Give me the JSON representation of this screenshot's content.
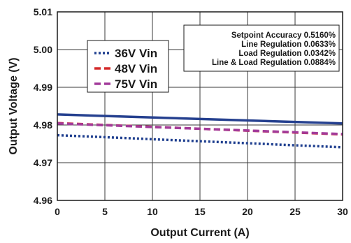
{
  "chart_data": {
    "type": "line",
    "title": "",
    "xlabel": "Output Current (A)",
    "ylabel": "Output Voltage (V)",
    "xlim": [
      0,
      30
    ],
    "ylim": [
      4.96,
      5.01
    ],
    "xticks": [
      0,
      5,
      10,
      15,
      20,
      25,
      30
    ],
    "yticks": [
      4.96,
      4.97,
      4.98,
      4.99,
      5.0,
      5.01
    ],
    "ytick_labels": [
      "4.96",
      "4.97",
      "4.98",
      "4.99",
      "5.00",
      "5.01"
    ],
    "grid": true,
    "legend_position": "upper-left",
    "series": [
      {
        "name": "36V Vin",
        "color": "#1f3f8f",
        "style": "dotted",
        "x": [
          0,
          30
        ],
        "y": [
          4.9773,
          4.9741
        ]
      },
      {
        "name": "48V Vin",
        "color": "#d42a2a",
        "style": "dashed",
        "x": [
          0,
          30
        ],
        "y": [
          4.9805,
          4.9775
        ]
      },
      {
        "name": "75V Vin",
        "color": "#a23a9a",
        "style": "dashed",
        "x": [
          0,
          30
        ],
        "y": [
          4.9804,
          4.9776
        ]
      },
      {
        "name": "",
        "color": "#25408f",
        "style": "solid",
        "x": [
          0,
          30
        ],
        "y": [
          4.9828,
          4.9804
        ]
      }
    ],
    "legend_order": [
      0,
      1,
      2
    ],
    "stats": [
      "Setpoint Accuracy 0.5160%",
      "Line Regulation 0.0633%",
      "Load Regulation 0.0342%",
      "Line & Load Regulation 0.0884%"
    ]
  }
}
